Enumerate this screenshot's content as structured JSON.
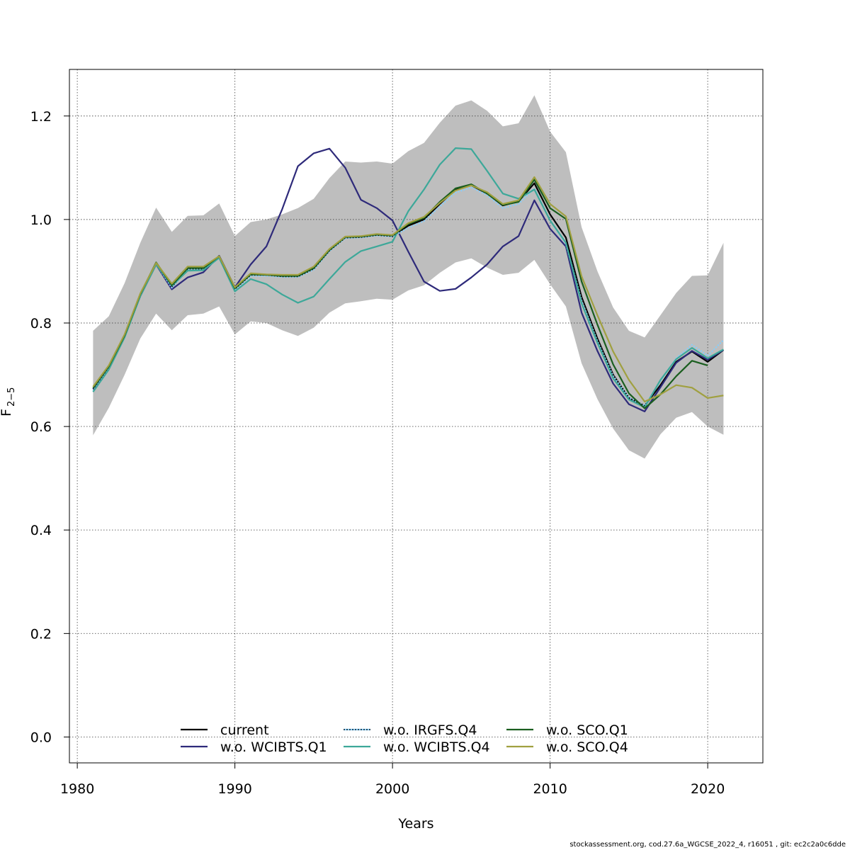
{
  "chart_data": {
    "type": "line",
    "xlabel": "Years",
    "ylabel_main": "F",
    "ylabel_sub": "2−5",
    "xlim": [
      1979.5,
      2023.5
    ],
    "ylim": [
      -0.05,
      1.29
    ],
    "xticks": [
      1980,
      1990,
      2000,
      2010,
      2020
    ],
    "yticks": [
      0.0,
      0.2,
      0.4,
      0.6,
      0.8,
      1.0,
      1.2
    ],
    "ytick_labels": [
      "0.0",
      "0.2",
      "0.4",
      "0.6",
      "0.8",
      "1.0",
      "1.2"
    ],
    "grid": true,
    "legend_position": "bottom",
    "years": [
      1981,
      1982,
      1983,
      1984,
      1985,
      1986,
      1987,
      1988,
      1989,
      1990,
      1991,
      1992,
      1993,
      1994,
      1995,
      1996,
      1997,
      1998,
      1999,
      2000,
      2001,
      2002,
      2003,
      2004,
      2005,
      2006,
      2007,
      2008,
      2009,
      2010,
      2011,
      2012,
      2013,
      2014,
      2015,
      2016,
      2017,
      2018,
      2019,
      2020,
      2021
    ],
    "band_color": "#bebebe",
    "band_upper": [
      0.785,
      0.813,
      0.877,
      0.955,
      1.023,
      0.976,
      1.007,
      1.008,
      1.031,
      0.968,
      0.995,
      1.0,
      1.01,
      1.022,
      1.04,
      1.08,
      1.112,
      1.11,
      1.112,
      1.108,
      1.132,
      1.148,
      1.187,
      1.22,
      1.23,
      1.21,
      1.18,
      1.186,
      1.24,
      1.17,
      1.13,
      0.985,
      0.9,
      0.83,
      0.785,
      0.772,
      0.815,
      0.858,
      0.891,
      0.892,
      0.955
    ],
    "band_lower": [
      0.583,
      0.636,
      0.7,
      0.77,
      0.818,
      0.786,
      0.815,
      0.818,
      0.832,
      0.778,
      0.803,
      0.8,
      0.786,
      0.775,
      0.791,
      0.82,
      0.838,
      0.842,
      0.847,
      0.845,
      0.863,
      0.873,
      0.897,
      0.917,
      0.925,
      0.907,
      0.893,
      0.897,
      0.922,
      0.875,
      0.832,
      0.722,
      0.653,
      0.596,
      0.554,
      0.538,
      0.585,
      0.617,
      0.628,
      0.6,
      0.584
    ],
    "series": [
      {
        "name": "current",
        "color": "#000000",
        "dash": "",
        "values": [
          0.672,
          0.714,
          0.775,
          0.855,
          0.915,
          0.87,
          0.905,
          0.905,
          0.928,
          0.866,
          0.893,
          0.893,
          0.89,
          0.89,
          0.905,
          0.94,
          0.965,
          0.966,
          0.97,
          0.968,
          0.988,
          1.0,
          1.03,
          1.058,
          1.066,
          1.05,
          1.027,
          1.035,
          1.07,
          1.01,
          0.965,
          0.85,
          0.77,
          0.7,
          0.655,
          0.64,
          0.68,
          0.725,
          0.745,
          0.725,
          0.748
        ]
      },
      {
        "name": "w.o. WCIBTS.Q1",
        "color": "#2e2a7a",
        "dash": "",
        "values": [
          0.672,
          0.711,
          0.775,
          0.852,
          0.913,
          0.865,
          0.888,
          0.898,
          0.93,
          0.869,
          0.913,
          0.948,
          1.02,
          1.103,
          1.128,
          1.137,
          1.1,
          1.038,
          1.022,
          0.998,
          0.938,
          0.88,
          0.862,
          0.866,
          0.888,
          0.913,
          0.948,
          0.968,
          1.037,
          0.982,
          0.948,
          0.82,
          0.746,
          0.683,
          0.643,
          0.629,
          0.676,
          0.723,
          0.746,
          0.729,
          0.748
        ]
      },
      {
        "name": "w.o. IRGFS.Q4",
        "color": "#87cefa",
        "dash": "2,2",
        "values": [
          0.668,
          0.713,
          0.775,
          0.853,
          0.914,
          0.868,
          0.903,
          0.904,
          0.926,
          0.864,
          0.891,
          0.891,
          0.889,
          0.889,
          0.903,
          0.939,
          0.964,
          0.965,
          0.969,
          0.967,
          0.984,
          0.997,
          1.025,
          1.052,
          1.062,
          1.047,
          1.022,
          1.03,
          1.06,
          0.998,
          0.953,
          0.843,
          0.765,
          0.698,
          0.656,
          0.64,
          0.688,
          0.732,
          0.758,
          0.737,
          0.767
        ]
      },
      {
        "name": "w.o. WCIBTS.Q4",
        "color": "#3da899",
        "dash": "",
        "values": [
          0.667,
          0.71,
          0.772,
          0.852,
          0.913,
          0.872,
          0.901,
          0.902,
          0.926,
          0.861,
          0.885,
          0.875,
          0.855,
          0.839,
          0.851,
          0.885,
          0.918,
          0.939,
          0.948,
          0.957,
          1.016,
          1.058,
          1.106,
          1.138,
          1.136,
          1.094,
          1.05,
          1.04,
          1.058,
          0.998,
          0.955,
          0.838,
          0.762,
          0.693,
          0.652,
          0.637,
          0.69,
          0.73,
          0.752,
          0.732,
          0.749
        ]
      },
      {
        "name": "w.o. SCO.Q1",
        "color": "#1a5e1f",
        "dash": "",
        "values": [
          0.674,
          0.716,
          0.776,
          0.856,
          0.917,
          0.873,
          0.906,
          0.906,
          0.929,
          0.867,
          0.894,
          0.893,
          0.891,
          0.891,
          0.906,
          0.941,
          0.966,
          0.967,
          0.971,
          0.969,
          0.991,
          1.003,
          1.034,
          1.06,
          1.068,
          1.05,
          1.028,
          1.034,
          1.077,
          1.022,
          1.001,
          0.88,
          0.797,
          0.72,
          0.664,
          0.635,
          0.662,
          0.697,
          0.727,
          0.718,
          null
        ]
      },
      {
        "name": "w.o. SCO.Q4",
        "color": "#a0a040",
        "dash": "",
        "values": [
          0.677,
          0.718,
          0.778,
          0.857,
          0.916,
          0.876,
          0.909,
          0.909,
          0.929,
          0.869,
          0.896,
          0.894,
          0.893,
          0.893,
          0.909,
          0.943,
          0.967,
          0.968,
          0.972,
          0.97,
          0.993,
          1.005,
          1.032,
          1.056,
          1.066,
          1.053,
          1.03,
          1.037,
          1.082,
          1.03,
          1.006,
          0.89,
          0.815,
          0.745,
          0.69,
          0.648,
          0.662,
          0.68,
          0.675,
          0.655,
          0.66
        ]
      }
    ]
  },
  "footer": {
    "text": "stockassessment.org, cod.27.6a_WGCSE_2022_4, r16051 , git: ec2c2a0c6dde"
  }
}
